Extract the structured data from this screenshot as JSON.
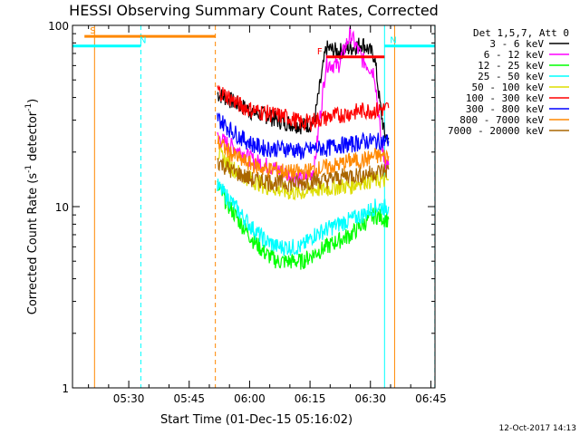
{
  "chart_data": {
    "type": "line",
    "title": "HESSI Observing Summary Count Rates, Corrected",
    "xlabel": "Start Time (01-Dec-15 05:16:02)",
    "ylabel_main": "Corrected Count Rate (s",
    "ylabel_sup1": "-1",
    "ylabel_mid": " detector",
    "ylabel_sup2": "-1",
    "ylabel_end": ")",
    "footer_date": "12-Oct-2017 14:13",
    "y_scale": "log",
    "ylim": [
      1,
      100
    ],
    "xlim": [
      16.03,
      106.03
    ],
    "x_unit": "minutes after 05:00 UT",
    "x_ticks": [
      {
        "value": 30,
        "label": "05:30"
      },
      {
        "value": 45,
        "label": "05:45"
      },
      {
        "value": 60,
        "label": "06:00"
      },
      {
        "value": 75,
        "label": "06:15"
      },
      {
        "value": 90,
        "label": "06:30"
      },
      {
        "value": 105,
        "label": "06:45"
      }
    ],
    "y_ticks": [
      {
        "value": 1,
        "label": "1"
      },
      {
        "value": 10,
        "label": "10"
      },
      {
        "value": 100,
        "label": "100"
      }
    ],
    "legend": {
      "title": "Det 1,5,7, Att 0",
      "placement": "right"
    },
    "series": [
      {
        "name": "3 - 6 keV",
        "color": "#000000",
        "x": [
          52,
          55,
          58,
          61,
          64,
          67,
          70,
          73,
          76,
          79,
          82,
          85,
          88,
          91,
          92.5,
          93.5,
          94.5
        ],
        "y": [
          42,
          39,
          36,
          33,
          32,
          30,
          29,
          28,
          29,
          75,
          72,
          75,
          80,
          68,
          35,
          25,
          24
        ]
      },
      {
        "name": "6 - 12 keV",
        "color": "#ff00ff",
        "x": [
          52,
          55,
          58,
          61,
          64,
          67,
          70,
          73,
          76,
          79,
          82,
          85,
          88,
          91,
          92.5,
          93.5,
          94.5
        ],
        "y": [
          24,
          22,
          20,
          18,
          17,
          16,
          15,
          14,
          16,
          62,
          60,
          90,
          65,
          55,
          25,
          18,
          17
        ]
      },
      {
        "name": "12 - 25 keV",
        "color": "#00ff00",
        "x": [
          52,
          55,
          58,
          61,
          64,
          67,
          70,
          73,
          76,
          79,
          82,
          85,
          88,
          91,
          94.5
        ],
        "y": [
          13,
          10,
          8,
          6.5,
          5.5,
          5,
          5,
          5,
          5.5,
          6,
          6.5,
          7,
          8,
          9,
          8.5
        ]
      },
      {
        "name": "25 - 50 keV",
        "color": "#00ffff",
        "x": [
          52,
          55,
          58,
          61,
          64,
          67,
          70,
          73,
          76,
          79,
          82,
          85,
          88,
          91,
          94.5
        ],
        "y": [
          13,
          11,
          9,
          7.5,
          6.5,
          6,
          6,
          6,
          7,
          7.5,
          8,
          8.5,
          9,
          10,
          10
        ]
      },
      {
        "name": "50 - 100 keV",
        "color": "#dddd00",
        "x": [
          52,
          55,
          58,
          61,
          64,
          67,
          70,
          73,
          76,
          79,
          82,
          85,
          88,
          91,
          94.5
        ],
        "y": [
          20,
          17,
          15,
          14,
          13,
          12.5,
          12,
          12,
          12.5,
          12.5,
          13,
          13,
          14,
          14,
          14
        ]
      },
      {
        "name": "100 - 300 keV",
        "color": "#ff0000",
        "x": [
          52,
          55,
          58,
          61,
          64,
          67,
          70,
          73,
          76,
          79,
          82,
          85,
          88,
          91,
          94.5
        ],
        "y": [
          44,
          40,
          36,
          34,
          33,
          32,
          31,
          29,
          30,
          31,
          32,
          33,
          34,
          34,
          35
        ]
      },
      {
        "name": "300 - 800 keV",
        "color": "#0000ff",
        "x": [
          52,
          55,
          58,
          61,
          64,
          67,
          70,
          73,
          76,
          79,
          82,
          85,
          88,
          91,
          94.5
        ],
        "y": [
          31,
          27,
          24,
          22,
          21,
          21,
          21,
          20,
          21,
          21,
          22,
          22,
          23,
          23,
          23
        ]
      },
      {
        "name": "800 - 7000 keV",
        "color": "#ff8800",
        "x": [
          52,
          55,
          58,
          61,
          64,
          67,
          70,
          73,
          76,
          79,
          82,
          85,
          88,
          91,
          94.5
        ],
        "y": [
          23,
          20,
          18,
          17,
          16,
          16,
          15.5,
          15.5,
          16,
          16.5,
          17,
          18,
          18,
          19,
          19
        ]
      },
      {
        "name": "7000 - 20000 keV",
        "color": "#aa6600",
        "x": [
          52,
          55,
          58,
          61,
          64,
          67,
          70,
          73,
          76,
          79,
          82,
          85,
          88,
          91,
          94.5
        ],
        "y": [
          18,
          16,
          15,
          14,
          14,
          13.5,
          13.5,
          13.5,
          14,
          14,
          14.5,
          15,
          15,
          15.5,
          16
        ]
      }
    ],
    "annotations": [
      {
        "label": "S",
        "color": "#ff8800",
        "x_start": 19,
        "x_end": 51.5,
        "y": 87
      },
      {
        "label": "N",
        "color": "#00ffff",
        "x_start": 16.03,
        "x_end": 33,
        "y": 77
      },
      {
        "label": "N",
        "color": "#00ffff",
        "x_start": 93.5,
        "x_end": 106.03,
        "y": 77
      },
      {
        "label": "F",
        "color": "#ff0000",
        "x_start": 79,
        "x_end": 93.5,
        "y": 67
      }
    ],
    "vertical_lines": [
      {
        "x": 16.03,
        "color": "#00ffff",
        "style": "solid"
      },
      {
        "x": 21.5,
        "color": "#ff8800",
        "style": "solid"
      },
      {
        "x": 33,
        "color": "#00ffff",
        "style": "dashed"
      },
      {
        "x": 51.5,
        "color": "#ff8800",
        "style": "dashed"
      },
      {
        "x": 93.5,
        "color": "#00ffff",
        "style": "solid"
      },
      {
        "x": 96,
        "color": "#ff8800",
        "style": "solid"
      },
      {
        "x": 106,
        "color": "#00ffff",
        "style": "dashed"
      }
    ]
  }
}
